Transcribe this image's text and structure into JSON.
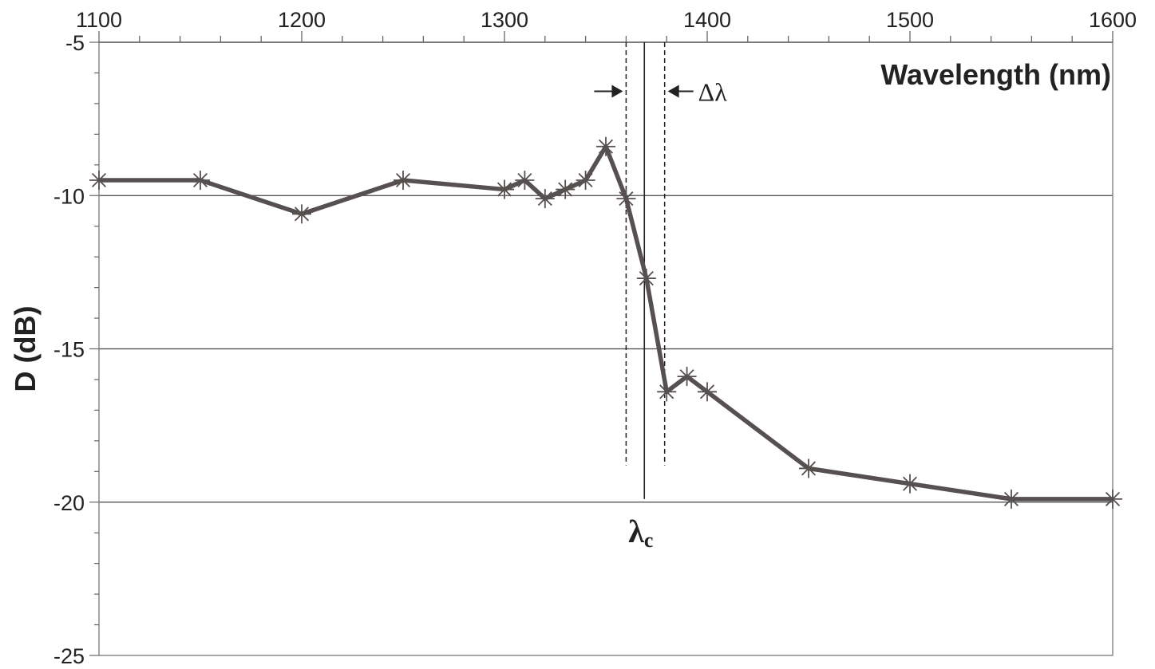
{
  "chart_data": {
    "type": "line",
    "xlabel": "Wavelength (nm)",
    "ylabel": "D  (dB)",
    "xlim": [
      1100,
      1600
    ],
    "ylim": [
      -25,
      -5
    ],
    "x_ticks": [
      1100,
      1200,
      1300,
      1400,
      1500,
      1600
    ],
    "x_tick_labels": [
      "1100",
      "1200",
      "1300",
      "1400",
      "1500",
      "1600"
    ],
    "y_ticks": [
      -5,
      -10,
      -15,
      -20,
      -25
    ],
    "y_tick_labels": [
      "-5",
      "-10",
      "-15",
      "-20",
      "-25"
    ],
    "x_axis_position": "top",
    "grid": {
      "horizontal": [
        -10,
        -15,
        -20
      ]
    },
    "marker": "asterisk",
    "line_color": "#575050",
    "series": [
      {
        "x": [
          1100,
          1150,
          1200,
          1250,
          1300,
          1310,
          1320,
          1330,
          1340,
          1350,
          1360,
          1370,
          1380,
          1390,
          1400,
          1450,
          1500,
          1550,
          1600
        ],
        "y": [
          -9.5,
          -9.5,
          -10.6,
          -9.5,
          -9.8,
          -9.5,
          -10.1,
          -9.8,
          -9.5,
          -8.4,
          -10.1,
          -12.7,
          -16.4,
          -15.9,
          -16.4,
          -18.9,
          -19.4,
          -19.9,
          -19.9
        ]
      }
    ],
    "annotations": {
      "lambda_c": {
        "x": 1369,
        "symbol": "λ",
        "subscript": "c",
        "y_bottom": -19.9
      },
      "delta_lambda": {
        "x_left": 1360,
        "x_right": 1379,
        "label": "Δλ",
        "y_bottom": -18.8,
        "arrow_y": -6.6
      }
    }
  }
}
